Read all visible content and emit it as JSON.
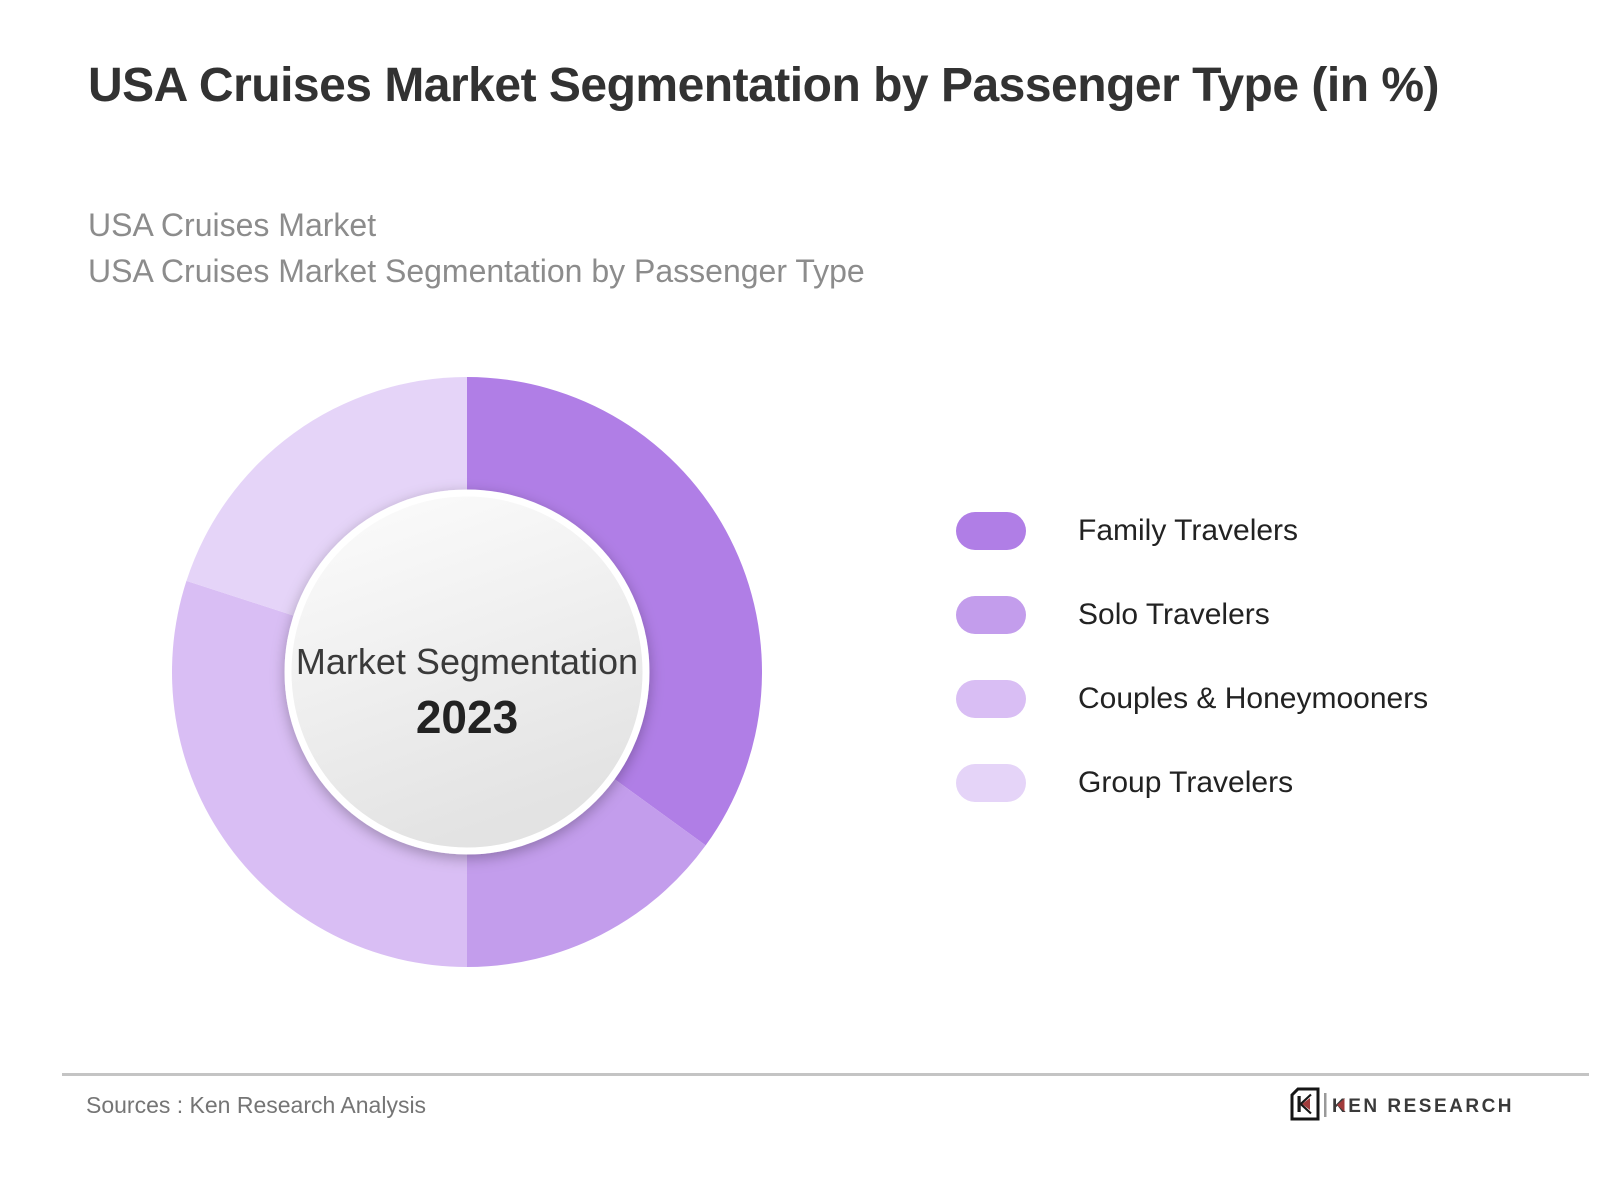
{
  "header": {
    "title": "USA Cruises Market Segmentation by Passenger Type (in %)",
    "subtitle_line1": "USA Cruises Market",
    "subtitle_line2": "USA Cruises Market Segmentation by Passenger Type"
  },
  "chart_data": {
    "type": "pie",
    "variant": "donut",
    "title": "USA Cruises Market Segmentation by Passenger Type (in %)",
    "center_label": "Market Segmentation",
    "year": "2023",
    "unit": "%",
    "start_angle_deg": 0,
    "direction": "clockwise",
    "legend_position": "right",
    "data_labels_shown": false,
    "segments": [
      {
        "label": "Family Travelers",
        "value": 35,
        "color": "#b07ee6"
      },
      {
        "label": "Solo Travelers",
        "value": 15,
        "color": "#c39dec"
      },
      {
        "label": "Couples & Honeymooners",
        "value": 30,
        "color": "#d9bef4"
      },
      {
        "label": "Group Travelers",
        "value": 20,
        "color": "#e5d4f8"
      }
    ]
  },
  "footer": {
    "sources": "Sources : Ken Research Analysis",
    "logo_text": "KEN RESEARCH"
  },
  "colors": {
    "background": "#ffffff",
    "title": "#323232",
    "subtitle": "#8c8c8c",
    "legend_label": "#222222",
    "sources_text": "#757575",
    "divider": "#c4c4c4",
    "logo_red": "#a03b3b",
    "logo_dark": "#3a3a3a"
  }
}
